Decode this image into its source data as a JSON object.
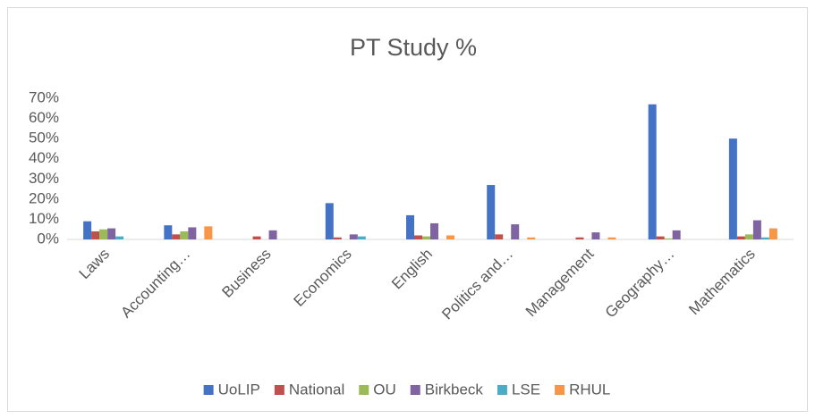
{
  "chart_data": {
    "type": "bar",
    "title": "PT Study %",
    "categories": [
      "Laws",
      "Accounting…",
      "Business",
      "Economics",
      "English",
      "Politics and…",
      "Management",
      "Geography…",
      "Mathematics"
    ],
    "series": [
      {
        "name": "UoLIP",
        "color": "#4472c4",
        "values": [
          9,
          7,
          0,
          18,
          12,
          27,
          0,
          67,
          50
        ]
      },
      {
        "name": "National",
        "color": "#c0504d",
        "values": [
          4,
          2.5,
          1.5,
          1,
          2,
          2.5,
          1,
          1.5,
          1.5
        ]
      },
      {
        "name": "OU",
        "color": "#9bbb59",
        "values": [
          5,
          4,
          0,
          0,
          1.5,
          0,
          0,
          0.5,
          2.5
        ]
      },
      {
        "name": "Birkbeck",
        "color": "#8064a2",
        "values": [
          5.5,
          6,
          4.5,
          2.5,
          8,
          7.5,
          3.5,
          4.5,
          9.5
        ]
      },
      {
        "name": "LSE",
        "color": "#4bacc6",
        "values": [
          1.5,
          0,
          0,
          1.5,
          0,
          0,
          0,
          0,
          1
        ]
      },
      {
        "name": "RHUL",
        "color": "#f79646",
        "values": [
          0,
          6.5,
          0,
          0,
          2,
          1,
          1,
          0,
          5.5
        ]
      }
    ],
    "ylim": [
      0,
      70
    ],
    "yticks": [
      {
        "value": 0,
        "label": "0%"
      },
      {
        "value": 10,
        "label": "10%"
      },
      {
        "value": 20,
        "label": "20%"
      },
      {
        "value": 30,
        "label": "30%"
      },
      {
        "value": 40,
        "label": "40%"
      },
      {
        "value": 50,
        "label": "50%"
      },
      {
        "value": 60,
        "label": "60%"
      },
      {
        "value": 70,
        "label": "70%"
      }
    ],
    "grid": false,
    "legend": "bottom"
  }
}
